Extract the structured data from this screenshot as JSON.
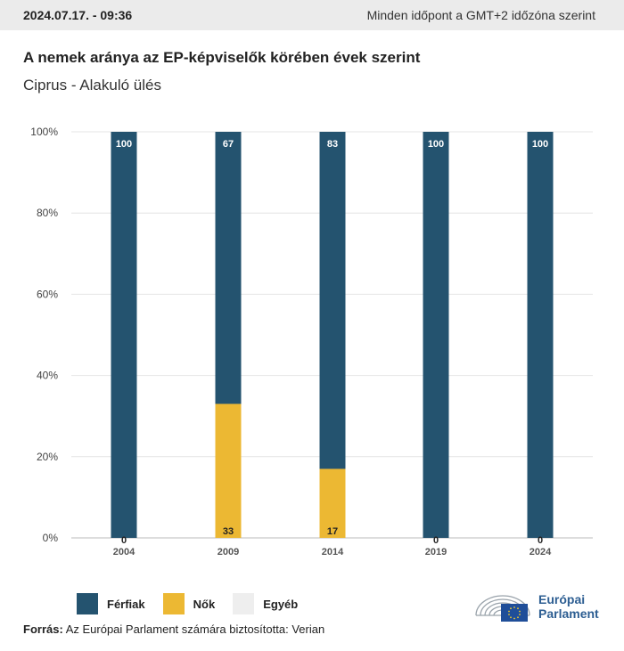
{
  "header": {
    "date": "2024.07.17. - 09:36",
    "timezone_note": "Minden időpont a GMT+2 időzóna szerint"
  },
  "title": "A nemek aránya az EP-képviselők körében évek szerint",
  "subtitle": "Ciprus - Alakuló ülés",
  "colors": {
    "men": "#24536f",
    "women": "#ecb833",
    "other": "#eeeeee",
    "grid": "#e4e4e4",
    "brand": "#2d5e92"
  },
  "chart_data": {
    "type": "bar",
    "stacked": true,
    "categories": [
      "2004",
      "2009",
      "2014",
      "2019",
      "2024"
    ],
    "series": [
      {
        "name": "Férfiak",
        "values": [
          100,
          67,
          83,
          100,
          100
        ]
      },
      {
        "name": "Nők",
        "values": [
          0,
          33,
          17,
          0,
          0
        ]
      },
      {
        "name": "Egyéb",
        "values": [
          0,
          0,
          0,
          0,
          0
        ]
      }
    ],
    "data_labels": {
      "men": [
        "100",
        "67",
        "83",
        "100",
        "100"
      ],
      "women": [
        "0",
        "33",
        "17",
        "0",
        "0"
      ]
    },
    "y_ticks": [
      "0%",
      "20%",
      "40%",
      "60%",
      "80%",
      "100%"
    ],
    "ylim": [
      0,
      100
    ],
    "grid": true,
    "legend_position": "bottom-left"
  },
  "legend": [
    "Férfiak",
    "Nők",
    "Egyéb"
  ],
  "source": {
    "label": "Forrás:",
    "text": "Az Európai Parlament számára biztosította: Verian"
  },
  "logo": {
    "line1": "Európai",
    "line2": "Parlament"
  }
}
